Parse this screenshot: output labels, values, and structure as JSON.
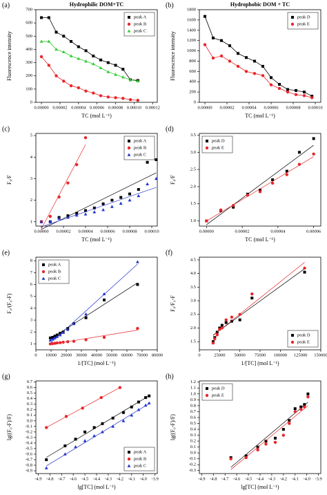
{
  "chart_data": [
    {
      "type": "line",
      "label": "(a)",
      "title": "Hydrophilic DOM+TC",
      "xlabel": "TC (mol L⁻¹)",
      "ylabel": "Fluorescence intensity",
      "legend": "upper-right",
      "xlim": [
        -6e-06,
        0.000125
      ],
      "ylim": [
        0,
        700
      ],
      "xticks": [
        {
          "value": 0,
          "label": "0.00000"
        },
        {
          "value": 2e-05,
          "label": "0.00002"
        },
        {
          "value": 4e-05,
          "label": "0.00004"
        },
        {
          "value": 6e-05,
          "label": "0.00006"
        },
        {
          "value": 8e-05,
          "label": "0.00008"
        },
        {
          "value": 0.0001,
          "label": "0.00010"
        },
        {
          "value": 0.00012,
          "label": "0.00012"
        }
      ],
      "yticks": [
        0,
        100,
        200,
        300,
        400,
        500,
        600,
        700
      ],
      "series": [
        {
          "name": "peak A",
          "color": "#000000",
          "marker": "square",
          "x": [
            0,
            8e-06,
            1.6e-05,
            2.4e-05,
            3.2e-05,
            4e-05,
            4.8e-05,
            5.6e-05,
            6.4e-05,
            7.2e-05,
            8e-05,
            8.8e-05,
            9.6e-05,
            0.000104
          ],
          "values": [
            640,
            640,
            530,
            500,
            460,
            420,
            390,
            350,
            320,
            300,
            280,
            250,
            170,
            165
          ]
        },
        {
          "name": "peak B",
          "color": "#e8262a",
          "marker": "circle",
          "x": [
            0,
            8e-06,
            1.6e-05,
            2.4e-05,
            3.2e-05,
            4e-05,
            4.8e-05,
            5.6e-05,
            6.4e-05,
            7.2e-05,
            8e-05,
            8.8e-05,
            9.6e-05,
            0.000104
          ],
          "values": [
            345,
            280,
            200,
            160,
            125,
            110,
            85,
            70,
            50,
            40,
            35,
            30,
            20,
            15
          ]
        },
        {
          "name": "peak C",
          "color": "#33cc33",
          "marker": "triangle",
          "x": [
            0,
            8e-06,
            1.6e-05,
            2.4e-05,
            3.2e-05,
            4e-05,
            4.8e-05,
            5.6e-05,
            6.4e-05,
            7.2e-05,
            8e-05,
            8.8e-05,
            9.6e-05,
            0.000104
          ],
          "values": [
            460,
            460,
            400,
            380,
            350,
            330,
            310,
            290,
            260,
            230,
            210,
            190,
            170,
            160
          ]
        }
      ]
    },
    {
      "type": "line",
      "label": "(b)",
      "title": "Hydrophobic DOM + TC",
      "xlabel": "TC (mol L⁻¹)",
      "ylabel": "Fluorescence intensity",
      "legend": "upper-right",
      "xlim": [
        -5e-06,
        0.000105
      ],
      "ylim": [
        0,
        1800
      ],
      "xticks": [
        {
          "value": 0,
          "label": "0.00000"
        },
        {
          "value": 2e-05,
          "label": "0.00002"
        },
        {
          "value": 4e-05,
          "label": "0.00004"
        },
        {
          "value": 6e-05,
          "label": "0.00006"
        },
        {
          "value": 8e-05,
          "label": "0.00008"
        },
        {
          "value": 0.0001,
          "label": "0.00010"
        }
      ],
      "yticks": [
        0,
        200,
        400,
        600,
        800,
        1000,
        1200,
        1400,
        1600,
        1800
      ],
      "series": [
        {
          "name": "peak D",
          "color": "#000000",
          "marker": "square",
          "x": [
            0,
            7.5e-06,
            1.5e-05,
            2.25e-05,
            3e-05,
            3.75e-05,
            4.5e-05,
            5.25e-05,
            6e-05,
            6.75e-05,
            7.5e-05,
            8.25e-05,
            9e-05,
            9.7e-05
          ],
          "values": [
            1670,
            1250,
            1200,
            1100,
            950,
            870,
            800,
            700,
            480,
            350,
            250,
            230,
            200,
            120
          ]
        },
        {
          "name": "peak E",
          "color": "#e8262a",
          "marker": "circle",
          "x": [
            0,
            7.5e-06,
            1.5e-05,
            2.25e-05,
            3e-05,
            3.75e-05,
            4.5e-05,
            5.25e-05,
            6e-05,
            6.75e-05,
            7.5e-05,
            8.25e-05,
            9e-05,
            9.7e-05
          ],
          "values": [
            1120,
            860,
            900,
            800,
            700,
            600,
            560,
            520,
            340,
            270,
            200,
            150,
            130,
            90
          ]
        }
      ]
    },
    {
      "type": "scatter",
      "label": "(c)",
      "xlabel": "TC (mol L⁻¹)",
      "ylabel": "F₀/F",
      "legend": "upper-right",
      "fit": true,
      "xlim": [
        -5e-06,
        0.000105
      ],
      "ylim": [
        0.8,
        5.1
      ],
      "xticks": [
        {
          "value": 0,
          "label": "0.00000"
        },
        {
          "value": 2e-05,
          "label": "0.00002"
        },
        {
          "value": 4e-05,
          "label": "0.00004"
        },
        {
          "value": 6e-05,
          "label": "0.00006"
        },
        {
          "value": 8e-05,
          "label": "0.00008"
        },
        {
          "value": 0.0001,
          "label": "0.00010"
        }
      ],
      "yticks": [
        1,
        2,
        3,
        4,
        5
      ],
      "series": [
        {
          "name": "peak A",
          "color": "#000000",
          "marker": "square",
          "x": [
            0,
            8e-06,
            1.6e-05,
            2.4e-05,
            3.2e-05,
            4e-05,
            4.8e-05,
            5.6e-05,
            6.4e-05,
            7.2e-05,
            8e-05,
            8.8e-05,
            9.6e-05,
            0.000104
          ],
          "values": [
            1.0,
            1.0,
            1.2,
            1.28,
            1.39,
            1.52,
            1.64,
            1.83,
            2.0,
            2.13,
            2.29,
            2.5,
            3.76,
            3.88
          ]
        },
        {
          "name": "peak B",
          "color": "#e8262a",
          "marker": "circle",
          "x": [
            0,
            8e-06,
            1.6e-05,
            2.4e-05,
            3.2e-05,
            4e-05
          ],
          "values": [
            1.0,
            1.25,
            2.15,
            2.8,
            3.65,
            4.9
          ]
        },
        {
          "name": "peak C",
          "color": "#2233cc",
          "marker": "triangle",
          "x": [
            0,
            8e-06,
            1.6e-05,
            2.4e-05,
            3.2e-05,
            4e-05,
            4.8e-05,
            5.6e-05,
            6.4e-05,
            7.2e-05,
            8e-05,
            8.8e-05,
            9.6e-05,
            0.000104
          ],
          "values": [
            1.0,
            1.0,
            1.15,
            1.2,
            1.3,
            1.35,
            1.45,
            1.55,
            1.7,
            1.85,
            2.0,
            2.2,
            2.75,
            3.0
          ]
        }
      ]
    },
    {
      "type": "scatter",
      "label": "(d)",
      "xlabel": "TC (mol L⁻¹)",
      "ylabel": "F₀/F",
      "legend": "upper-left",
      "fit": true,
      "xlim": [
        -4e-06,
        6.4e-05
      ],
      "ylim": [
        0.85,
        3.55
      ],
      "xticks": [
        {
          "value": 0,
          "label": "0.00000"
        },
        {
          "value": 2e-05,
          "label": "0.00002"
        },
        {
          "value": 4e-05,
          "label": "0.00004"
        },
        {
          "value": 6e-05,
          "label": "0.00006"
        }
      ],
      "yticks": [
        {
          "value": 1,
          "label": "1.0"
        },
        1.5,
        {
          "value": 2,
          "label": "2.0"
        },
        2.5,
        {
          "value": 3,
          "label": "3.0"
        },
        3.5
      ],
      "series": [
        {
          "name": "peak D",
          "color": "#000000",
          "marker": "square",
          "x": [
            0,
            8e-06,
            1.5e-05,
            2.3e-05,
            3e-05,
            3.7e-05,
            4.5e-05,
            5.2e-05,
            6e-05
          ],
          "values": [
            1.0,
            1.3,
            1.4,
            1.78,
            1.9,
            2.2,
            2.45,
            3.0,
            3.4
          ]
        },
        {
          "name": "peak E",
          "color": "#e8262a",
          "marker": "circle",
          "x": [
            0,
            8e-06,
            1.5e-05,
            2.3e-05,
            3e-05,
            3.7e-05,
            4.5e-05,
            5.2e-05,
            6e-05
          ],
          "values": [
            1.0,
            1.32,
            1.45,
            1.75,
            1.85,
            2.1,
            2.35,
            2.65,
            2.95
          ]
        }
      ]
    },
    {
      "type": "scatter",
      "label": "(e)",
      "xlabel": "1/[TC] (mol L⁻¹)",
      "ylabel": "F₀/(F₀-F)",
      "legend": "upper-left",
      "fit": true,
      "xlim": [
        0,
        80000
      ],
      "ylim": [
        0.5,
        8.3
      ],
      "xticks": [
        0,
        10000,
        20000,
        30000,
        40000,
        50000,
        60000,
        70000,
        80000
      ],
      "yticks": [
        1,
        2,
        3,
        4,
        5,
        6,
        7,
        8
      ],
      "series": [
        {
          "name": "peak A",
          "color": "#000000",
          "marker": "square",
          "x": [
            9500,
            11000,
            12500,
            14000,
            16000,
            18000,
            21000,
            25000,
            33000,
            45000,
            67000
          ],
          "values": [
            1.5,
            1.55,
            1.65,
            1.75,
            1.9,
            2.0,
            2.3,
            2.7,
            3.2,
            4.7,
            6.0
          ]
        },
        {
          "name": "peak B",
          "color": "#e8262a",
          "marker": "circle",
          "x": [
            9500,
            11000,
            12500,
            14000,
            16000,
            18000,
            21000,
            25000,
            33000,
            45000,
            67000
          ],
          "values": [
            1.0,
            1.02,
            1.05,
            1.08,
            1.1,
            1.14,
            1.18,
            1.22,
            1.35,
            1.55,
            2.3
          ]
        },
        {
          "name": "peak C",
          "color": "#2233cc",
          "marker": "triangle",
          "x": [
            9500,
            11000,
            12500,
            14000,
            16000,
            18000,
            21000,
            25000,
            33000,
            45000,
            67000
          ],
          "values": [
            1.3,
            1.4,
            1.5,
            1.6,
            1.75,
            1.95,
            2.2,
            2.7,
            3.5,
            5.2,
            7.9
          ]
        }
      ]
    },
    {
      "type": "scatter",
      "label": "(f)",
      "xlabel": "1/[TC] (mol L⁻¹)",
      "ylabel": "F₀/F₀-F",
      "legend": "lower-right",
      "fit": true,
      "xlim": [
        0,
        150000
      ],
      "ylim": [
        1.2,
        4.6
      ],
      "xticks": [
        0,
        25000,
        50000,
        75000,
        100000,
        125000,
        150000
      ],
      "yticks": [
        1.5,
        {
          "value": 2,
          "label": "2.0"
        },
        2.5,
        {
          "value": 3,
          "label": "3.0"
        },
        3.5,
        {
          "value": 4,
          "label": "4.0"
        },
        4.5
      ],
      "series": [
        {
          "name": "peak D",
          "color": "#000000",
          "marker": "square",
          "x": [
            17000,
            19000,
            22000,
            25000,
            28000,
            33000,
            40000,
            50000,
            65000,
            130000
          ],
          "values": [
            1.5,
            1.65,
            1.85,
            2.0,
            2.1,
            2.2,
            2.25,
            2.3,
            3.1,
            4.05
          ]
        },
        {
          "name": "peak E",
          "color": "#e8262a",
          "marker": "circle",
          "x": [
            17000,
            19000,
            22000,
            25000,
            28000,
            33000,
            40000,
            50000,
            65000,
            130000
          ],
          "values": [
            1.45,
            1.6,
            1.75,
            1.95,
            2.0,
            2.3,
            2.4,
            2.5,
            3.25,
            4.2
          ]
        }
      ]
    },
    {
      "type": "scatter",
      "label": "(g)",
      "xlabel": "lg[TC] (mol L⁻¹)",
      "ylabel": "lg((F₀-F)/F)",
      "legend": "lower-right",
      "fit": true,
      "xlim": [
        -4.92,
        -3.88
      ],
      "ylim": [
        -0.95,
        0.72
      ],
      "xticks": [
        -4.9,
        -4.8,
        -4.7,
        -4.6,
        -4.5,
        -4.4,
        -4.3,
        -4.2,
        -4.1,
        {
          "value": -4,
          "label": "-4.0"
        },
        -3.9
      ],
      "yticks": [
        -0.9,
        -0.8,
        -0.7,
        -0.6,
        -0.5,
        -0.4,
        -0.3,
        -0.2,
        -0.1,
        {
          "value": 0,
          "label": "0.0"
        },
        0.1,
        0.2,
        0.3,
        0.4,
        0.5,
        0.6,
        0.7
      ],
      "series": [
        {
          "name": "peak A",
          "color": "#000000",
          "marker": "square",
          "x": [
            -4.83,
            -4.67,
            -4.58,
            -4.5,
            -4.42,
            -4.35,
            -4.26,
            -4.17,
            -4.1,
            -4.04,
            -3.98,
            -3.95
          ],
          "values": [
            -0.7,
            -0.45,
            -0.33,
            -0.2,
            -0.12,
            -0.05,
            0.05,
            0.15,
            0.25,
            0.34,
            0.42,
            0.45
          ]
        },
        {
          "name": "peak B",
          "color": "#e8262a",
          "marker": "circle",
          "x": [
            -4.83,
            -4.66,
            -4.52,
            -4.36,
            -4.2
          ],
          "values": [
            -0.12,
            0.08,
            0.23,
            0.42,
            0.6
          ]
        },
        {
          "name": "peak C",
          "color": "#2233cc",
          "marker": "triangle",
          "x": [
            -4.83,
            -4.67,
            -4.58,
            -4.5,
            -4.42,
            -4.35,
            -4.26,
            -4.17,
            -4.1,
            -4.04,
            -3.98,
            -3.95
          ],
          "values": [
            -0.85,
            -0.6,
            -0.47,
            -0.36,
            -0.27,
            -0.2,
            -0.1,
            0.0,
            0.1,
            0.2,
            0.28,
            0.32
          ]
        }
      ]
    },
    {
      "type": "scatter",
      "label": "(h)",
      "xlabel": "lg[TC] (mol L⁻¹)",
      "ylabel": "lg((F₀-F)/F)",
      "legend": "upper-left",
      "fit": true,
      "xlim": [
        -4.92,
        -3.88
      ],
      "ylim": [
        -0.35,
        1.22
      ],
      "xticks": [
        -4.9,
        -4.8,
        -4.7,
        -4.6,
        -4.5,
        -4.4,
        -4.3,
        -4.2,
        -4.1,
        {
          "value": -4,
          "label": "-4.0"
        },
        -3.9
      ],
      "yticks": [
        -0.3,
        -0.2,
        -0.1,
        {
          "value": 0,
          "label": "0.0"
        },
        0.1,
        0.2,
        0.3,
        0.4,
        0.5,
        0.6,
        0.7,
        0.8,
        0.9,
        {
          "value": 1,
          "label": "1.0"
        },
        1.1,
        1.2
      ],
      "series": [
        {
          "name": "peak D",
          "color": "#000000",
          "marker": "square",
          "x": [
            -4.65,
            -4.52,
            -4.42,
            -4.35,
            -4.27,
            -4.2,
            -4.15,
            -4.1,
            -4.05,
            -4.02,
            -3.99
          ],
          "values": [
            -0.08,
            -0.05,
            0.1,
            0.2,
            0.25,
            0.4,
            0.55,
            0.75,
            0.78,
            0.82,
            1.0
          ]
        },
        {
          "name": "peak E",
          "color": "#e8262a",
          "marker": "circle",
          "x": [
            -4.65,
            -4.52,
            -4.42,
            -4.35,
            -4.27,
            -4.2,
            -4.15,
            -4.1,
            -4.05,
            -4.02,
            -3.99
          ],
          "values": [
            -0.1,
            -0.08,
            0.05,
            0.15,
            0.18,
            0.3,
            0.5,
            0.7,
            0.74,
            0.78,
            0.95
          ]
        }
      ]
    }
  ]
}
